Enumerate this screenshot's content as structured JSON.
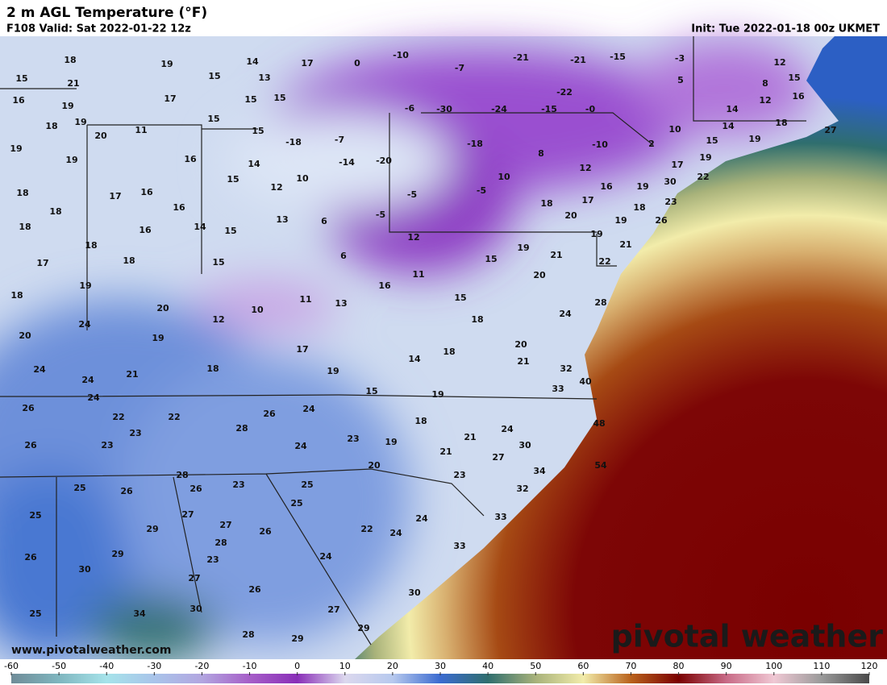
{
  "header": {
    "title": "2 m AGL Temperature (°F)",
    "valid": "F108 Valid: Sat 2022-01-22 12z",
    "init": "Init: Tue 2022-01-18 00z UKMET"
  },
  "map": {
    "temperature_rows": [
      [
        18,
        19,
        14,
        13,
        17,
        0,
        -10,
        -7,
        -21,
        -21,
        -15,
        -3,
        12
      ],
      [
        15,
        21,
        15,
        5,
        8,
        15
      ],
      [
        16,
        19,
        17,
        15,
        15,
        -6,
        -30,
        -24,
        -15,
        -22,
        "-0",
        14,
        12,
        16
      ],
      [
        18,
        19,
        20,
        11,
        15,
        15,
        -18,
        -7,
        10,
        14,
        18,
        27
      ],
      [
        19,
        19,
        16,
        14,
        -14,
        -20,
        -18,
        8,
        -10,
        2,
        15,
        19,
        17,
        19
      ],
      [
        18,
        17,
        16,
        15,
        12,
        10,
        10,
        12,
        22,
        30
      ],
      [
        18,
        16,
        13,
        6,
        -5,
        -5,
        16,
        19,
        17,
        23
      ],
      [
        18,
        16,
        14,
        15,
        -5,
        18,
        20,
        18,
        19,
        26
      ],
      [
        12,
        19,
        21
      ],
      [
        17,
        18,
        18,
        15,
        6,
        15,
        19,
        21,
        22
      ],
      [
        19,
        11,
        16,
        20
      ],
      [
        18,
        20,
        12,
        10,
        11,
        13,
        15,
        24,
        28
      ],
      [
        20,
        24,
        19,
        18
      ],
      [
        17,
        20,
        24,
        21,
        18,
        19,
        14,
        18,
        21,
        32,
        40
      ],
      [
        24,
        15,
        19,
        33
      ],
      [
        26,
        24,
        22,
        22,
        26,
        24,
        18,
        24,
        48
      ],
      [
        26,
        23,
        23,
        28,
        24,
        23,
        19,
        21,
        21,
        30,
        27
      ],
      [
        20,
        23,
        34,
        54,
        28
      ],
      [
        25,
        26,
        26,
        23,
        25,
        32
      ],
      [
        25,
        27,
        25,
        33,
        24
      ],
      [
        29,
        27,
        26,
        22,
        24
      ],
      [
        26,
        29,
        28,
        23,
        33,
        24
      ],
      [
        30,
        27,
        26,
        30
      ],
      [
        30,
        27,
        25,
        34
      ],
      [
        28,
        29,
        29
      ]
    ]
  },
  "colorbar": {
    "range": [
      -60,
      120
    ],
    "ticks": [
      -60,
      -50,
      -40,
      -30,
      -20,
      -10,
      0,
      10,
      20,
      30,
      40,
      50,
      60,
      70,
      80,
      90,
      100,
      110,
      120
    ],
    "colors": [
      "#6f8c98",
      "#7fb6bf",
      "#a6e3ea",
      "#a9c4ea",
      "#b2a6e0",
      "#a65ec8",
      "#8a2fb8",
      "#dcd8ee",
      "#b7c9ee",
      "#3b6bd0",
      "#2f6e6e",
      "#a8b27a",
      "#f2ecaa",
      "#b9621c",
      "#7a0000",
      "#c86a86",
      "#f0c8d4",
      "#9a9a9a",
      "#4a4a4a"
    ]
  },
  "footer": {
    "website": "www.pivotalweather.com",
    "watermark": "pivotal weather"
  }
}
